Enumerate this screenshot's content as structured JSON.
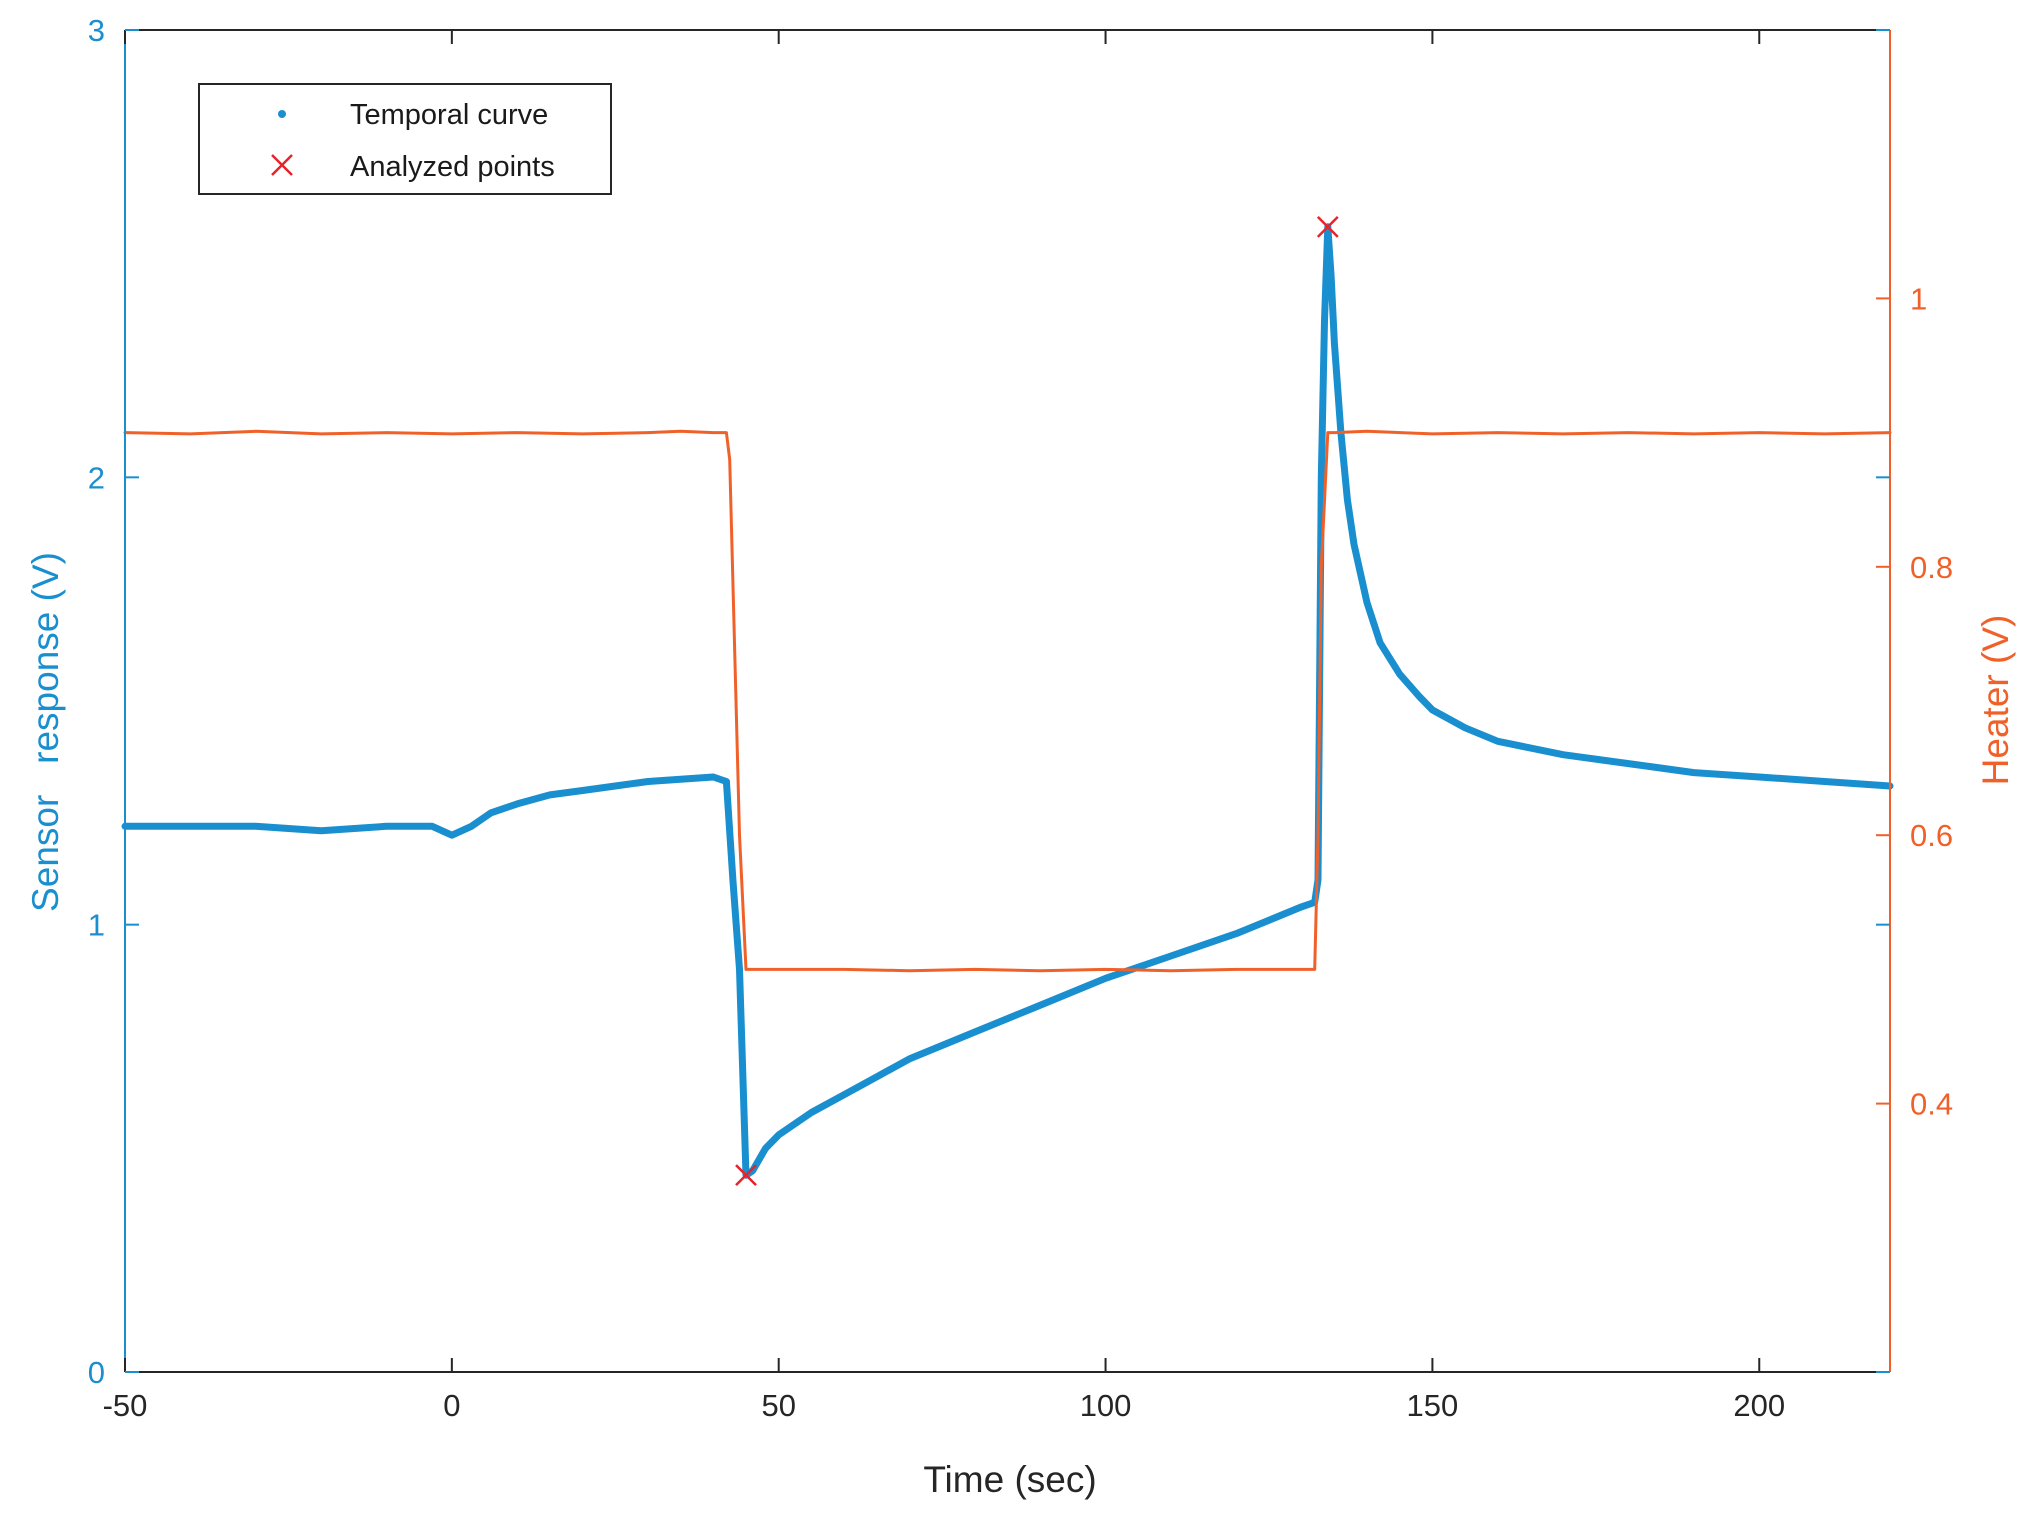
{
  "chart_data": {
    "type": "line",
    "title": "",
    "xlabel": "Time (sec)",
    "ylabel_left": "Sensor   response (V)",
    "ylabel_right": "Heater (V)",
    "xlim": [
      -50,
      220
    ],
    "ylim_left": [
      0,
      3
    ],
    "ylim_right": [
      0.2,
      1.2
    ],
    "xticks": [
      -50,
      0,
      50,
      100,
      150,
      200
    ],
    "xtick_labels": [
      "-50",
      "0",
      "50",
      "100",
      "150",
      "200"
    ],
    "yticks_left": [
      0,
      1,
      2,
      3
    ],
    "ytick_labels_left": [
      "0",
      "1",
      "2",
      "3"
    ],
    "yticks_right": [
      0.4,
      0.6,
      0.8,
      1.0
    ],
    "ytick_labels_right": [
      "0.4",
      "0.6",
      "0.8",
      "1"
    ],
    "grid": false,
    "legend": {
      "position": "top-left",
      "entries": [
        "Temporal curve",
        "Analyzed points"
      ]
    },
    "series": [
      {
        "name": "Temporal curve",
        "axis": "left",
        "color": "#1a8fd0",
        "x": [
          -50,
          -40,
          -30,
          -20,
          -10,
          -3,
          0,
          3,
          6,
          10,
          15,
          20,
          25,
          30,
          35,
          40,
          42,
          43,
          44,
          45,
          46,
          48,
          50,
          55,
          60,
          65,
          70,
          80,
          90,
          100,
          110,
          120,
          125,
          130,
          132,
          132.5,
          133,
          133.5,
          134,
          134.5,
          135,
          136,
          137,
          138,
          140,
          142,
          145,
          148,
          150,
          155,
          160,
          170,
          180,
          190,
          200,
          210,
          220
        ],
        "y": [
          1.22,
          1.22,
          1.22,
          1.21,
          1.22,
          1.22,
          1.2,
          1.22,
          1.25,
          1.27,
          1.29,
          1.3,
          1.31,
          1.32,
          1.325,
          1.33,
          1.32,
          1.1,
          0.9,
          0.44,
          0.45,
          0.5,
          0.53,
          0.58,
          0.62,
          0.66,
          0.7,
          0.76,
          0.82,
          0.88,
          0.93,
          0.98,
          1.01,
          1.04,
          1.05,
          1.1,
          2.0,
          2.35,
          2.56,
          2.45,
          2.3,
          2.1,
          1.95,
          1.85,
          1.72,
          1.63,
          1.56,
          1.51,
          1.48,
          1.44,
          1.41,
          1.38,
          1.36,
          1.34,
          1.33,
          1.32,
          1.31
        ]
      },
      {
        "name": "Heater",
        "axis": "right",
        "color": "#f0612a",
        "x": [
          -50,
          -40,
          -30,
          -20,
          -10,
          0,
          10,
          20,
          30,
          35,
          40,
          42,
          42.5,
          44,
          45,
          46,
          50,
          60,
          70,
          80,
          90,
          100,
          110,
          120,
          130,
          132,
          132.5,
          133,
          134,
          135,
          140,
          150,
          160,
          170,
          180,
          190,
          200,
          210,
          220
        ],
        "y": [
          0.9,
          0.899,
          0.901,
          0.899,
          0.9,
          0.899,
          0.9,
          0.899,
          0.9,
          0.901,
          0.9,
          0.9,
          0.88,
          0.6,
          0.5,
          0.5,
          0.5,
          0.5,
          0.499,
          0.5,
          0.499,
          0.5,
          0.499,
          0.5,
          0.5,
          0.5,
          0.6,
          0.8,
          0.9,
          0.9,
          0.901,
          0.899,
          0.9,
          0.899,
          0.9,
          0.899,
          0.9,
          0.899,
          0.9
        ]
      },
      {
        "name": "Analyzed points",
        "axis": "left",
        "type": "scatter",
        "marker": "x",
        "color": "#e8232a",
        "x": [
          45,
          134
        ],
        "y": [
          0.44,
          2.56
        ]
      }
    ]
  }
}
